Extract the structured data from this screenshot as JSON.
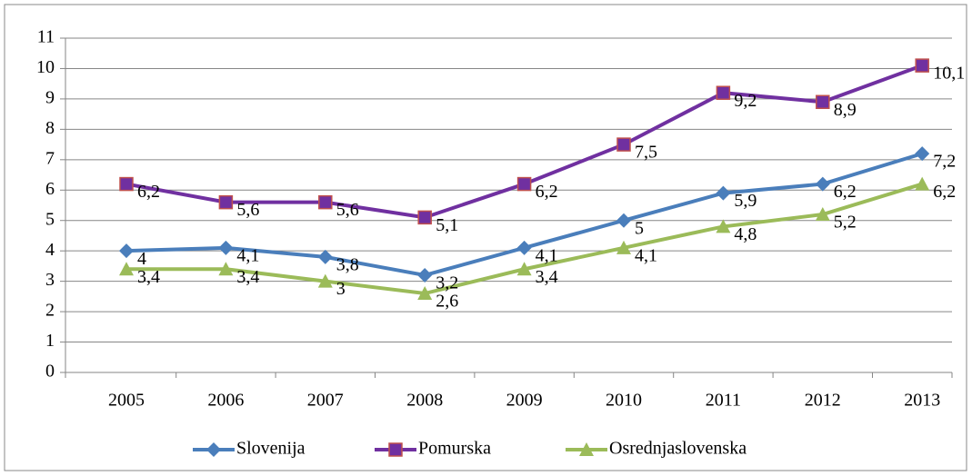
{
  "chart_data": {
    "type": "line",
    "categories": [
      "2005",
      "2006",
      "2007",
      "2008",
      "2009",
      "2010",
      "2011",
      "2012",
      "2013"
    ],
    "series": [
      {
        "name": "Slovenija",
        "color": "#4a7ebb",
        "marker": "diamond",
        "values": [
          4,
          4.1,
          3.8,
          3.2,
          4.1,
          5,
          5.9,
          6.2,
          7.2
        ],
        "value_labels": [
          "4",
          "4,1",
          "3,8",
          "3,2",
          "4,1",
          "5",
          "5,9",
          "6,2",
          "7,2"
        ]
      },
      {
        "name": "Pomurska",
        "color": "#7030a0",
        "marker": "square",
        "values": [
          6.2,
          5.6,
          5.6,
          5.1,
          6.2,
          7.5,
          9.2,
          8.9,
          10.1
        ],
        "value_labels": [
          "6,2",
          "5,6",
          "5,6",
          "5,1",
          "6,2",
          "7,5",
          "9,2",
          "8,9",
          "10,1"
        ]
      },
      {
        "name": "Osrednjaslovenska",
        "color": "#9bbb59",
        "marker": "triangle",
        "values": [
          3.4,
          3.4,
          3,
          2.6,
          3.4,
          4.1,
          4.8,
          5.2,
          6.2
        ],
        "value_labels": [
          "3,4",
          "3,4",
          "3",
          "2,6",
          "3,4",
          "4,1",
          "4,8",
          "5,2",
          "6,2"
        ]
      }
    ],
    "ylim": [
      0,
      11
    ],
    "yticks": [
      0,
      1,
      2,
      3,
      4,
      5,
      6,
      7,
      8,
      9,
      10,
      11
    ],
    "grid": true,
    "legend": "bottom"
  }
}
